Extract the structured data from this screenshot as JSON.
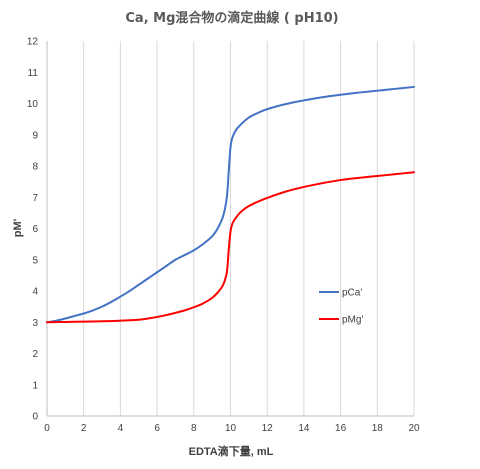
{
  "chart_data": {
    "type": "line",
    "title": "Ca, Mg混合物の滴定曲線 ( pH10)",
    "xlabel": "EDTA滴下量, mL",
    "ylabel": "pM'",
    "xlim": [
      0,
      20
    ],
    "ylim": [
      0,
      12
    ],
    "xticks": [
      0,
      2,
      4,
      6,
      8,
      10,
      12,
      14,
      16,
      18,
      20
    ],
    "yticks": [
      0,
      1,
      2,
      3,
      4,
      5,
      6,
      7,
      8,
      9,
      10,
      11,
      12
    ],
    "xtick_labels": [
      "0",
      "2",
      "4",
      "6",
      "8",
      "10",
      "12",
      "14",
      "16",
      "18",
      "20"
    ],
    "ytick_labels": [
      "0",
      "1",
      "2",
      "3",
      "4",
      "5",
      "6",
      "7",
      "8",
      "9",
      "10",
      "11",
      "12"
    ],
    "grid": "vertical",
    "legend_position": "right",
    "series": [
      {
        "name": "pCa'",
        "color": "#4472C4",
        "x": [
          0,
          0.5,
          1,
          1.5,
          2,
          2.5,
          3,
          3.5,
          4,
          4.5,
          5,
          5.5,
          6,
          6.5,
          7,
          7.5,
          8,
          8.5,
          9,
          9.3,
          9.6,
          9.8,
          9.9,
          10.0,
          10.1,
          10.3,
          10.6,
          11,
          11.5,
          12,
          13,
          14,
          15,
          16,
          17,
          18,
          19,
          20
        ],
        "y": [
          3.0,
          3.05,
          3.12,
          3.2,
          3.28,
          3.38,
          3.5,
          3.65,
          3.82,
          4.0,
          4.2,
          4.4,
          4.6,
          4.8,
          5.0,
          5.15,
          5.3,
          5.5,
          5.75,
          6.0,
          6.4,
          7.0,
          7.8,
          8.6,
          8.9,
          9.15,
          9.35,
          9.55,
          9.7,
          9.82,
          9.98,
          10.1,
          10.2,
          10.28,
          10.35,
          10.41,
          10.47,
          10.53
        ]
      },
      {
        "name": "pMg'",
        "color": "#FF0000",
        "x": [
          0,
          1,
          2,
          3,
          4,
          5,
          5.5,
          6,
          6.5,
          7,
          7.5,
          8,
          8.5,
          9,
          9.3,
          9.6,
          9.8,
          9.9,
          10.0,
          10.1,
          10.3,
          10.6,
          11,
          11.5,
          12,
          13,
          14,
          15,
          16,
          17,
          18,
          19,
          20
        ],
        "y": [
          3.0,
          3.01,
          3.02,
          3.03,
          3.05,
          3.08,
          3.12,
          3.17,
          3.23,
          3.3,
          3.38,
          3.48,
          3.6,
          3.78,
          3.95,
          4.2,
          4.6,
          5.3,
          5.9,
          6.15,
          6.35,
          6.55,
          6.72,
          6.86,
          6.98,
          7.18,
          7.33,
          7.45,
          7.55,
          7.62,
          7.68,
          7.74,
          7.8
        ]
      }
    ]
  }
}
